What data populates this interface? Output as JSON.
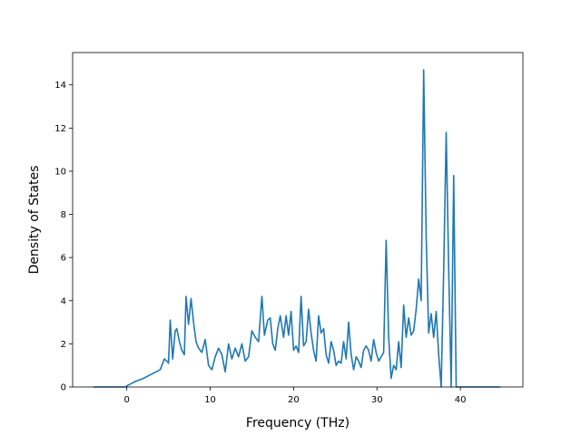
{
  "chart_data": {
    "type": "line",
    "title": "",
    "xlabel": "Frequency (THz)",
    "ylabel": "Density of States",
    "xlim": [
      -6.5,
      47.5
    ],
    "ylim": [
      0,
      15.5
    ],
    "xticks": [
      0,
      10,
      20,
      30,
      40
    ],
    "yticks": [
      0,
      2,
      4,
      6,
      8,
      10,
      12,
      14
    ],
    "grid": false,
    "legend": "none",
    "line_color": "#1f77b4",
    "series": [
      {
        "x": [
          -4.0,
          -0.1,
          0.0,
          1.0,
          2.0,
          2.5,
          3.0,
          3.5,
          4.0,
          4.5,
          4.8,
          5.0,
          5.2,
          5.5,
          5.8,
          6.0,
          6.3,
          6.6,
          6.9,
          7.1,
          7.4,
          7.7,
          8.0,
          8.3,
          8.6,
          9.0,
          9.4,
          9.8,
          10.2,
          10.6,
          11.0,
          11.4,
          11.8,
          12.2,
          12.6,
          13.0,
          13.4,
          13.8,
          14.2,
          14.6,
          15.0,
          15.4,
          15.8,
          16.2,
          16.5,
          16.9,
          17.2,
          17.5,
          17.8,
          18.1,
          18.4,
          18.8,
          19.1,
          19.4,
          19.7,
          20.0,
          20.3,
          20.6,
          20.9,
          21.2,
          21.5,
          21.8,
          22.1,
          22.4,
          22.7,
          23.0,
          23.3,
          23.6,
          23.9,
          24.2,
          24.5,
          24.8,
          25.1,
          25.4,
          25.7,
          26.0,
          26.3,
          26.6,
          26.9,
          27.2,
          27.5,
          27.8,
          28.1,
          28.4,
          28.7,
          29.0,
          29.3,
          29.6,
          29.9,
          30.2,
          30.5,
          30.8,
          31.1,
          31.4,
          31.7,
          32.0,
          32.3,
          32.6,
          32.9,
          33.2,
          33.5,
          33.8,
          34.1,
          34.4,
          34.7,
          35.0,
          35.3,
          35.6,
          35.9,
          36.2,
          36.5,
          36.8,
          37.1,
          37.4,
          37.7,
          38.0,
          38.3,
          38.6,
          38.9,
          39.2,
          39.5,
          39.8,
          40.0,
          40.3,
          40.5,
          40.7,
          41.0,
          41.5,
          44.8
        ],
        "y": [
          0.0,
          0.0,
          0.05,
          0.25,
          0.4,
          0.5,
          0.6,
          0.7,
          0.8,
          1.3,
          1.2,
          1.1,
          3.1,
          1.3,
          2.6,
          2.7,
          2.1,
          1.7,
          1.5,
          4.2,
          2.9,
          4.1,
          3.0,
          2.1,
          1.8,
          1.6,
          2.2,
          1.0,
          0.8,
          1.4,
          1.8,
          1.5,
          0.7,
          2.0,
          1.3,
          1.8,
          1.4,
          2.0,
          1.2,
          1.4,
          2.6,
          2.3,
          2.1,
          4.2,
          2.4,
          3.1,
          3.2,
          2.0,
          1.7,
          2.7,
          3.3,
          2.3,
          3.3,
          2.4,
          3.5,
          1.7,
          1.9,
          1.6,
          4.2,
          1.9,
          2.1,
          3.6,
          2.5,
          1.7,
          1.2,
          3.3,
          2.5,
          2.7,
          1.5,
          1.1,
          2.1,
          1.7,
          1.0,
          1.2,
          1.1,
          2.1,
          1.3,
          3.0,
          1.5,
          0.8,
          1.4,
          1.2,
          0.9,
          1.7,
          1.9,
          1.7,
          1.2,
          2.2,
          1.6,
          1.2,
          1.4,
          1.6,
          6.8,
          2.3,
          0.4,
          1.0,
          0.8,
          2.1,
          0.9,
          3.8,
          2.3,
          3.2,
          2.4,
          2.6,
          3.6,
          5.0,
          4.0,
          14.7,
          7.0,
          2.5,
          3.4,
          2.3,
          3.5,
          1.5,
          0.0,
          5.4,
          11.8,
          5.5,
          0.0,
          9.8,
          0.0,
          0.0,
          0.0,
          0.0,
          0.0,
          0.0,
          0.0,
          0.0,
          0.0
        ]
      }
    ]
  }
}
